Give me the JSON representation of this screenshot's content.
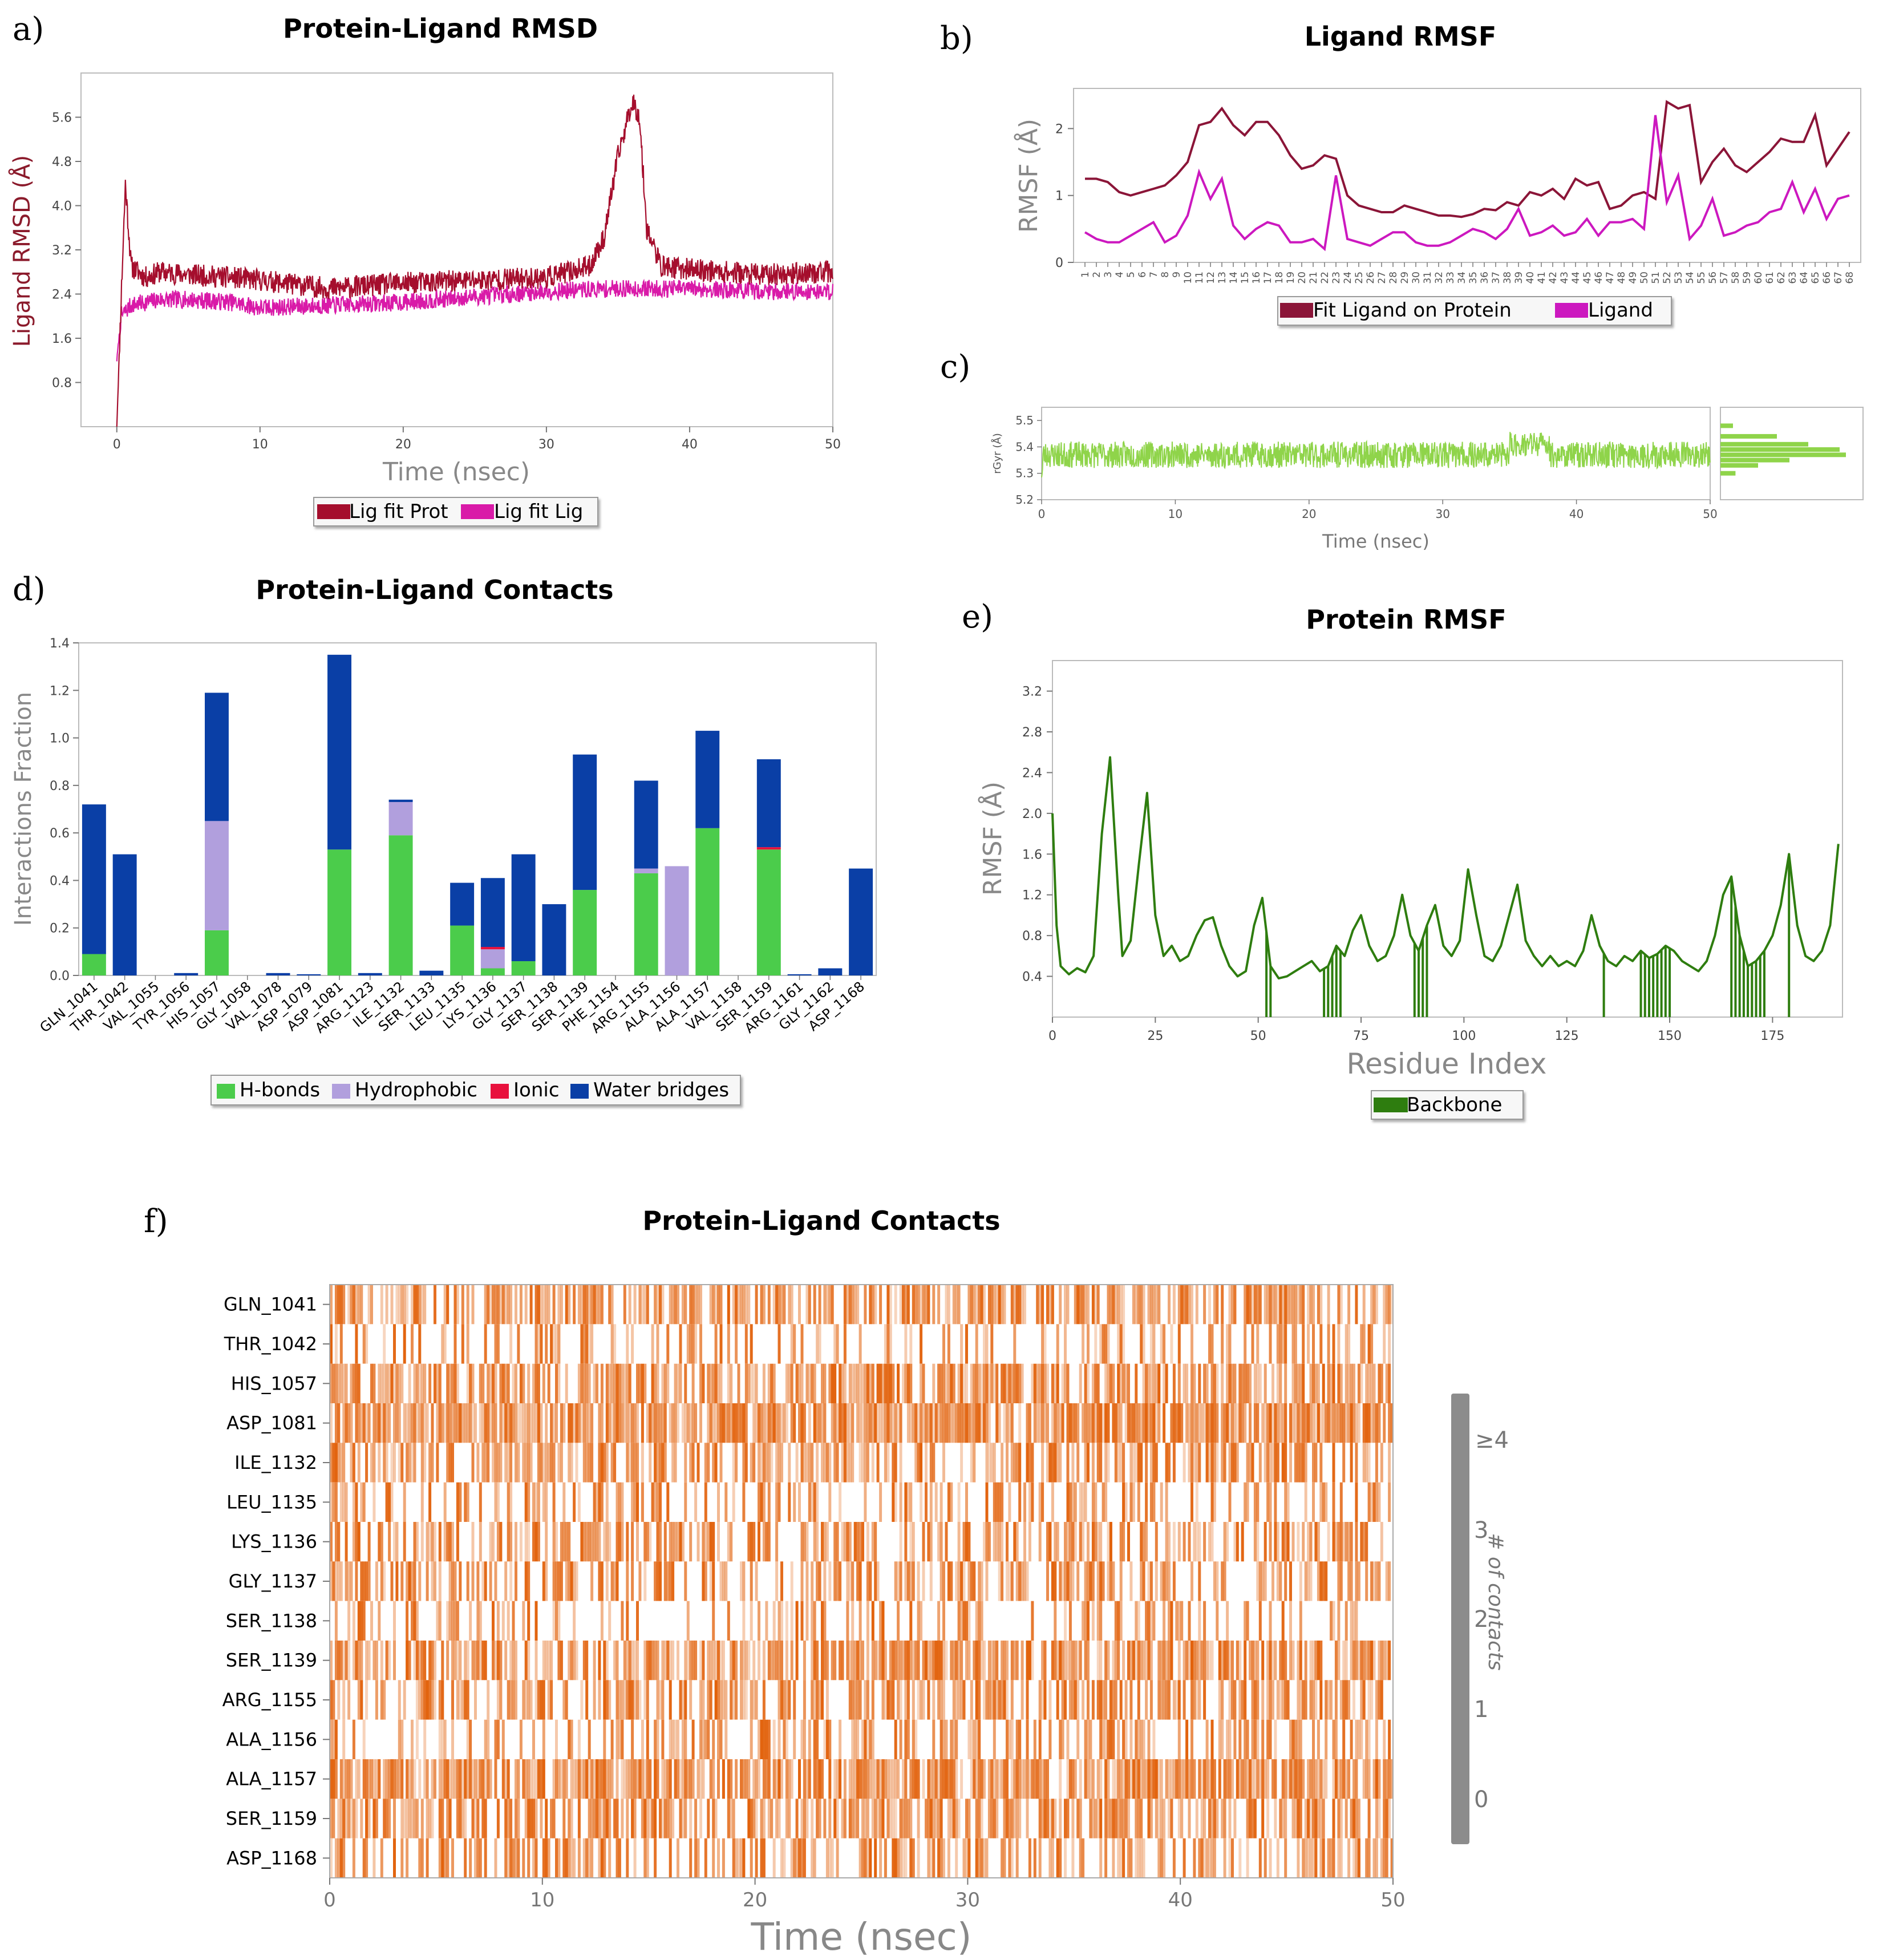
{
  "chart_data": [
    {
      "panel": "a)",
      "type": "line",
      "title": "Protein-Ligand RMSD",
      "xlabel": "Time (nsec)",
      "ylabel": "Ligand RMSD (Å)",
      "xlim": [
        -2.5,
        50
      ],
      "ylim": [
        0,
        6.4
      ],
      "xticks": [
        "0",
        "10",
        "20",
        "30",
        "40",
        "50"
      ],
      "yticks": [
        "0.8",
        "1.6",
        "2.4",
        "3.2",
        "4.0",
        "4.8",
        "5.6"
      ],
      "legend": [
        "Lig fit Prot",
        "Lig fit Lig"
      ],
      "colors": [
        "#a50e2d",
        "#d91aa8"
      ],
      "series": [
        {
          "name": "Lig fit Prot",
          "x": [
            0,
            0.3,
            0.6,
            1,
            2,
            3,
            5,
            8,
            10,
            15,
            20,
            25,
            30,
            33,
            34,
            35,
            36,
            36.5,
            37,
            38,
            40,
            45,
            50
          ],
          "y": [
            0,
            2.3,
            4.4,
            2.9,
            2.7,
            2.8,
            2.75,
            2.7,
            2.65,
            2.5,
            2.6,
            2.65,
            2.7,
            2.9,
            3.4,
            4.9,
            5.9,
            5.6,
            3.6,
            2.9,
            2.85,
            2.75,
            2.8
          ]
        },
        {
          "name": "Lig fit Lig",
          "x": [
            0,
            0.3,
            1,
            3,
            5,
            8,
            10,
            15,
            20,
            25,
            30,
            35,
            40,
            45,
            50
          ],
          "y": [
            1.2,
            2.0,
            2.2,
            2.3,
            2.3,
            2.25,
            2.15,
            2.2,
            2.25,
            2.35,
            2.45,
            2.5,
            2.5,
            2.45,
            2.45
          ]
        }
      ]
    },
    {
      "panel": "b)",
      "type": "line",
      "title": "Ligand RMSF",
      "ylabel": "RMSF (Å)",
      "ylim": [
        0,
        2.6
      ],
      "yticks": [
        "0",
        "1",
        "2"
      ],
      "xticks": [
        "1",
        "2",
        "3",
        "4",
        "5",
        "6",
        "7",
        "8",
        "9",
        "10",
        "11",
        "12",
        "13",
        "14",
        "15",
        "16",
        "17",
        "18",
        "19",
        "20",
        "21",
        "22",
        "23",
        "24",
        "25",
        "26",
        "27",
        "28",
        "29",
        "30",
        "31",
        "32",
        "33",
        "34",
        "35",
        "36",
        "37",
        "38",
        "39",
        "40",
        "41",
        "42",
        "43",
        "44",
        "45",
        "46",
        "47",
        "48",
        "49",
        "50",
        "51",
        "52",
        "53",
        "54",
        "55",
        "56",
        "57",
        "58",
        "59",
        "60",
        "61",
        "62",
        "63",
        "64",
        "65",
        "66",
        "67",
        "68"
      ],
      "legend": [
        "Fit Ligand on Protein",
        "Ligand"
      ],
      "colors": [
        "#8b1538",
        "#cc18bf"
      ],
      "series": [
        {
          "name": "Fit Ligand on Protein",
          "values": [
            1.25,
            1.25,
            1.2,
            1.05,
            1.0,
            1.05,
            1.1,
            1.15,
            1.3,
            1.5,
            2.05,
            2.1,
            2.3,
            2.05,
            1.9,
            2.1,
            2.1,
            1.9,
            1.6,
            1.4,
            1.45,
            1.6,
            1.55,
            1.0,
            0.85,
            0.8,
            0.75,
            0.75,
            0.85,
            0.8,
            0.75,
            0.7,
            0.7,
            0.68,
            0.72,
            0.8,
            0.78,
            0.9,
            0.85,
            1.05,
            1.0,
            1.1,
            0.95,
            1.25,
            1.15,
            1.2,
            0.8,
            0.85,
            1.0,
            1.05,
            0.95,
            2.4,
            2.3,
            2.35,
            1.2,
            1.5,
            1.7,
            1.45,
            1.35,
            1.5,
            1.65,
            1.85,
            1.8,
            1.8,
            2.2,
            1.45,
            1.7,
            1.95
          ]
        },
        {
          "name": "Ligand",
          "values": [
            0.45,
            0.35,
            0.3,
            0.3,
            0.4,
            0.5,
            0.6,
            0.3,
            0.4,
            0.7,
            1.35,
            0.95,
            1.25,
            0.55,
            0.35,
            0.5,
            0.6,
            0.55,
            0.3,
            0.3,
            0.35,
            0.2,
            1.3,
            0.35,
            0.3,
            0.25,
            0.35,
            0.45,
            0.45,
            0.3,
            0.25,
            0.25,
            0.3,
            0.4,
            0.5,
            0.45,
            0.35,
            0.5,
            0.8,
            0.4,
            0.45,
            0.55,
            0.4,
            0.45,
            0.65,
            0.4,
            0.6,
            0.6,
            0.65,
            0.5,
            2.2,
            0.9,
            1.3,
            0.35,
            0.55,
            0.95,
            0.4,
            0.45,
            0.55,
            0.6,
            0.75,
            0.8,
            1.2,
            0.75,
            1.1,
            0.65,
            0.95,
            1.0
          ]
        }
      ]
    },
    {
      "panel": "c)",
      "type": "line",
      "xlabel": "Time (nsec)",
      "ylabel": "rGyr (Å)",
      "xlim": [
        0,
        50
      ],
      "ylim": [
        5.2,
        5.55
      ],
      "xticks": [
        "0",
        "10",
        "20",
        "30",
        "40",
        "50"
      ],
      "yticks": [
        "5.2",
        "5.3",
        "5.4",
        "5.5"
      ],
      "color": "#8fd44a",
      "series": [
        {
          "name": "rGyr",
          "mean": 5.37,
          "spread": 0.05
        }
      ],
      "histogram": {
        "bins": [
          "5.48",
          "5.44",
          "5.41",
          "5.39",
          "5.37",
          "5.35",
          "5.33",
          "5.30"
        ],
        "counts": [
          10,
          45,
          70,
          95,
          100,
          55,
          30,
          12
        ]
      }
    },
    {
      "panel": "d)",
      "type": "bar",
      "title": "Protein-Ligand Contacts",
      "ylabel": "Interactions Fraction",
      "ylim": [
        0,
        1.4
      ],
      "yticks": [
        "0.0",
        "0.2",
        "0.4",
        "0.6",
        "0.8",
        "1.0",
        "1.2",
        "1.4"
      ],
      "categories": [
        "GLN_1041",
        "THR_1042",
        "VAL_1055",
        "TYR_1056",
        "HIS_1057",
        "GLY_1058",
        "VAL_1078",
        "ASP_1079",
        "ASP_1081",
        "ARG_1123",
        "ILE_1132",
        "SER_1133",
        "LEU_1135",
        "LYS_1136",
        "GLY_1137",
        "SER_1138",
        "SER_1139",
        "PHE_1154",
        "ARG_1155",
        "ALA_1156",
        "ALA_1157",
        "VAL_1158",
        "SER_1159",
        "ARG_1161",
        "GLY_1162",
        "ASP_1168"
      ],
      "legend": [
        "H-bonds",
        "Hydrophobic",
        "Ionic",
        "Water bridges"
      ],
      "colors": [
        "#4bcc4b",
        "#b19fdd",
        "#e8113d",
        "#0a3fa6"
      ],
      "series": [
        {
          "name": "H-bonds",
          "values": [
            0.09,
            0,
            0,
            0,
            0.19,
            0,
            0,
            0,
            0.53,
            0,
            0.59,
            0,
            0.21,
            0.03,
            0.06,
            0,
            0.36,
            0,
            0.43,
            0,
            0.62,
            0,
            0.53,
            0,
            0,
            0
          ]
        },
        {
          "name": "Hydrophobic",
          "values": [
            0,
            0,
            0,
            0,
            0.46,
            0,
            0,
            0,
            0,
            0,
            0.14,
            0,
            0,
            0.08,
            0,
            0,
            0,
            0,
            0.02,
            0.46,
            0,
            0,
            0,
            0,
            0,
            0
          ]
        },
        {
          "name": "Ionic",
          "values": [
            0,
            0,
            0,
            0,
            0,
            0,
            0,
            0,
            0,
            0,
            0,
            0,
            0,
            0.01,
            0,
            0,
            0,
            0,
            0,
            0,
            0,
            0,
            0.01,
            0,
            0,
            0
          ]
        },
        {
          "name": "Water bridges",
          "values": [
            0.63,
            0.51,
            0,
            0.01,
            0.54,
            0,
            0.01,
            0.005,
            0.82,
            0.01,
            0.01,
            0.02,
            0.18,
            0.29,
            0.45,
            0.3,
            0.57,
            0,
            0.37,
            0,
            0.41,
            0,
            0.37,
            0.005,
            0.03,
            0.45
          ]
        }
      ]
    },
    {
      "panel": "e)",
      "type": "line",
      "title": "Protein RMSF",
      "xlabel": "Residue Index",
      "ylabel": "RMSF (Å)",
      "xlim": [
        0,
        192
      ],
      "ylim": [
        0,
        3.5
      ],
      "xticks": [
        "0",
        "25",
        "50",
        "75",
        "100",
        "125",
        "150",
        "175"
      ],
      "yticks": [
        "0.4",
        "0.8",
        "1.2",
        "1.6",
        "2.0",
        "2.4",
        "2.8",
        "3.2"
      ],
      "legend": [
        "Backbone"
      ],
      "color": "#2e7d0f",
      "series": [
        {
          "name": "Backbone",
          "x": [
            0,
            1,
            2,
            4,
            6,
            8,
            10,
            12,
            14,
            16,
            17,
            19,
            21,
            23,
            25,
            27,
            29,
            31,
            33,
            35,
            37,
            39,
            41,
            43,
            45,
            47,
            49,
            51,
            53,
            55,
            57,
            59,
            61,
            63,
            65,
            67,
            69,
            71,
            73,
            75,
            77,
            79,
            81,
            83,
            85,
            87,
            89,
            91,
            93,
            95,
            97,
            99,
            101,
            103,
            105,
            107,
            109,
            111,
            113,
            115,
            117,
            119,
            121,
            123,
            125,
            127,
            129,
            131,
            133,
            135,
            137,
            139,
            141,
            143,
            145,
            147,
            149,
            151,
            153,
            155,
            157,
            159,
            161,
            163,
            165,
            167,
            169,
            171,
            173,
            175,
            177,
            179,
            181,
            183,
            185,
            187,
            189,
            190,
            191
          ],
          "y": [
            2.0,
            0.9,
            0.5,
            0.42,
            0.48,
            0.44,
            0.6,
            1.8,
            2.55,
            1.2,
            0.6,
            0.75,
            1.5,
            2.2,
            1.0,
            0.6,
            0.7,
            0.55,
            0.6,
            0.8,
            0.95,
            0.98,
            0.7,
            0.5,
            0.4,
            0.45,
            0.9,
            1.17,
            0.5,
            0.38,
            0.4,
            0.45,
            0.5,
            0.55,
            0.45,
            0.5,
            0.7,
            0.6,
            0.85,
            1.0,
            0.7,
            0.55,
            0.6,
            0.8,
            1.2,
            0.8,
            0.65,
            0.9,
            1.1,
            0.7,
            0.6,
            0.75,
            1.45,
            1.0,
            0.6,
            0.55,
            0.7,
            1.0,
            1.3,
            0.75,
            0.6,
            0.5,
            0.6,
            0.5,
            0.55,
            0.5,
            0.65,
            1.0,
            0.7,
            0.55,
            0.5,
            0.6,
            0.55,
            0.65,
            0.58,
            0.62,
            0.7,
            0.65,
            0.55,
            0.5,
            0.45,
            0.55,
            0.8,
            1.2,
            1.38,
            0.8,
            0.5,
            0.55,
            0.65,
            0.8,
            1.1,
            1.6,
            0.9,
            0.6,
            0.55,
            0.65,
            0.9,
            1.3,
            1.7
          ]
        }
      ],
      "contact_residues": [
        52,
        53,
        66,
        67,
        68,
        69,
        70,
        88,
        89,
        90,
        91,
        134,
        143,
        144,
        145,
        146,
        147,
        148,
        149,
        150,
        165,
        166,
        167,
        168,
        169,
        170,
        171,
        172,
        173,
        179
      ]
    },
    {
      "panel": "f)",
      "type": "heatmap",
      "title": "Protein-Ligand Contacts",
      "xlabel": "Time (nsec)",
      "xlim": [
        0,
        50
      ],
      "xticks": [
        "0",
        "10",
        "20",
        "30",
        "40",
        "50"
      ],
      "rows": [
        "GLN_1041",
        "THR_1042",
        "HIS_1057",
        "ASP_1081",
        "ILE_1132",
        "LEU_1135",
        "LYS_1136",
        "GLY_1137",
        "SER_1138",
        "SER_1139",
        "ARG_1155",
        "ALA_1156",
        "ALA_1157",
        "SER_1159",
        "ASP_1168"
      ],
      "row_density": [
        0.65,
        0.3,
        0.7,
        0.85,
        0.6,
        0.35,
        0.5,
        0.5,
        0.3,
        0.7,
        0.55,
        0.4,
        0.8,
        0.65,
        0.45
      ],
      "colorbar": {
        "label": "# of contacts",
        "ticks": [
          "0",
          "1",
          "2",
          "3",
          "≥4"
        ]
      },
      "color": "#e2620c"
    }
  ],
  "labels": {
    "panel_a": "a)",
    "panel_b": "b)",
    "panel_c": "c)",
    "panel_d": "d)",
    "panel_e": "e)",
    "panel_f": "f)"
  }
}
